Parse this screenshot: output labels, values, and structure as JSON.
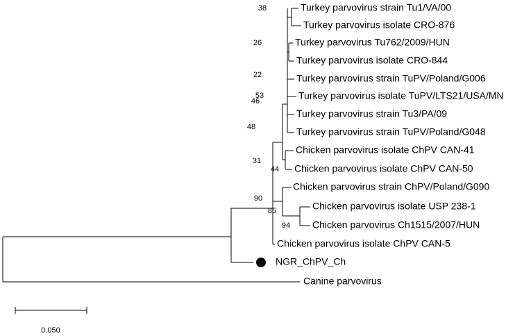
{
  "leaves": [
    "Turkey parvovirus strain Tu1/VA/00",
    "Turkey parvovirus isolate CRO-876",
    "Turkey parvovirus Tu762/2009/HUN",
    "Turkey parvovirus isolate CRO-844",
    "Turkey parvovirus strain TuPV/Poland/G006",
    "Turkey parvovirus isolate TuPV/LTS21/USA/MN",
    "Turkey parvovirus strain Tu3/PA/09",
    "Turkey parvovirus strain TuPV/Poland/G048",
    "Chicken parvovirus isolate ChPV CAN-41",
    "Chicken parvovirus isolate ChPV CAN-50",
    "Chicken parvovirus strain ChPV/Poland/G090",
    "Chicken parvovirus isolate USP 238-1",
    "Chicken parvovirus Ch1515/2007/HUN",
    "Chicken parvovirus isolate ChPV CAN-5",
    "NGR_ChPV_Ch",
    "Canine parvovirus"
  ],
  "bootstrap": [
    38,
    26,
    22,
    53,
    46,
    48,
    31,
    44,
    90,
    85,
    94
  ],
  "scale_bar": {
    "label": "0.050"
  }
}
